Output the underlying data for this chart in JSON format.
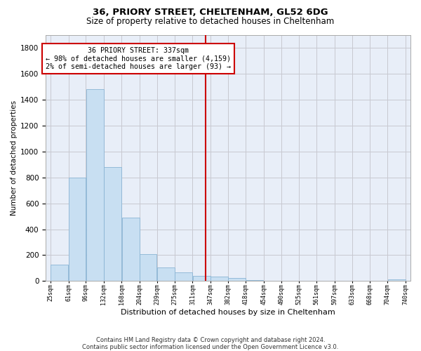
{
  "title1": "36, PRIORY STREET, CHELTENHAM, GL52 6DG",
  "title2": "Size of property relative to detached houses in Cheltenham",
  "xlabel": "Distribution of detached houses by size in Cheltenham",
  "ylabel": "Number of detached properties",
  "footnote": "Contains HM Land Registry data © Crown copyright and database right 2024.\nContains public sector information licensed under the Open Government Licence v3.0.",
  "bin_edges": [
    25,
    61,
    96,
    132,
    168,
    204,
    239,
    275,
    311,
    347,
    382,
    418,
    454,
    490,
    525,
    561,
    597,
    633,
    668,
    704,
    740
  ],
  "bar_heights": [
    125,
    800,
    1480,
    880,
    490,
    205,
    105,
    65,
    42,
    32,
    25,
    8,
    0,
    0,
    0,
    0,
    0,
    0,
    0,
    15
  ],
  "bar_color": "#c8dff2",
  "bar_edge_color": "#8ab4d4",
  "vline_x": 337,
  "vline_color": "#cc0000",
  "annotation_text": "36 PRIORY STREET: 337sqm\n← 98% of detached houses are smaller (4,159)\n2% of semi-detached houses are larger (93) →",
  "annotation_box_facecolor": "#ffffff",
  "annotation_border_color": "#cc0000",
  "ylim": [
    0,
    1900
  ],
  "yticks": [
    0,
    200,
    400,
    600,
    800,
    1000,
    1200,
    1400,
    1600,
    1800
  ],
  "tick_labels": [
    "25sqm",
    "61sqm",
    "96sqm",
    "132sqm",
    "168sqm",
    "204sqm",
    "239sqm",
    "275sqm",
    "311sqm",
    "347sqm",
    "382sqm",
    "418sqm",
    "454sqm",
    "490sqm",
    "525sqm",
    "561sqm",
    "597sqm",
    "633sqm",
    "668sqm",
    "704sqm",
    "740sqm"
  ],
  "background_color": "#ffffff",
  "plot_bg_color": "#e8eef8",
  "grid_color": "#c8c8d0"
}
